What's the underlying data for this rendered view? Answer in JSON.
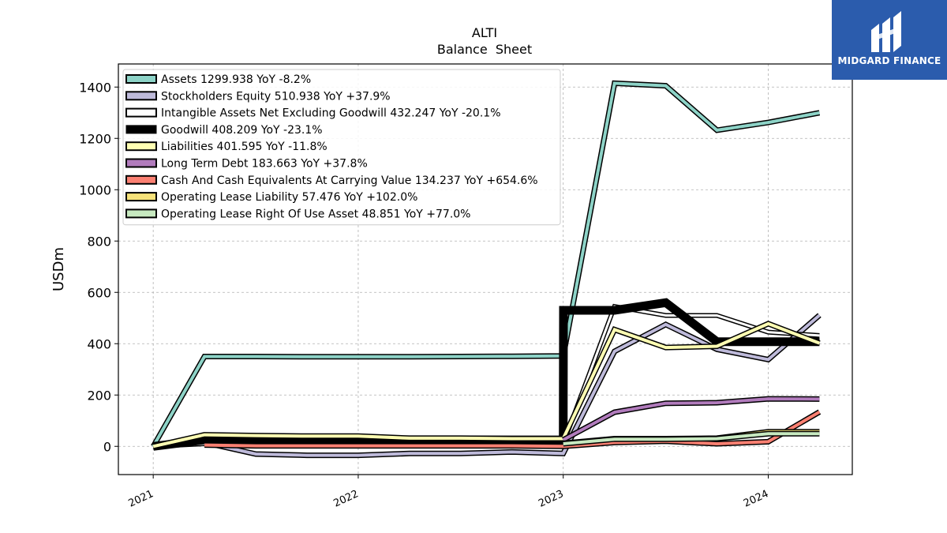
{
  "logo": {
    "text": "MIDGARD FINANCE"
  },
  "chart_data": {
    "type": "line",
    "title": "ALTI",
    "subtitle": "Balance  Sheet",
    "xlabel": "",
    "ylabel": "USDm",
    "ylim": [
      -110,
      1490
    ],
    "xlim": [
      2020.83,
      2024.41
    ],
    "yticks": [
      0,
      200,
      400,
      600,
      800,
      1000,
      1200,
      1400
    ],
    "xticks": [
      {
        "value": 2021,
        "label": "2021"
      },
      {
        "value": 2022,
        "label": "2022"
      },
      {
        "value": 2023,
        "label": "2023"
      },
      {
        "value": 2024,
        "label": "2024"
      }
    ],
    "grid": true,
    "legend_position": "top-left",
    "series": [
      {
        "name": "Assets  1299.938 YoY -8.2%",
        "color": "#8dd3c7",
        "width": 4,
        "x": [
          2021.0,
          2021.25,
          2021.5,
          2021.75,
          2022.0,
          2022.25,
          2022.5,
          2022.75,
          2023.0,
          2023.001,
          2023.25,
          2023.5,
          2023.75,
          2024.0,
          2024.25
        ],
        "y": [
          0,
          350,
          350,
          349,
          349,
          349,
          350,
          351,
          352,
          355,
          1415,
          1405,
          1232,
          1262,
          1300
        ]
      },
      {
        "name": "Stockholders Equity  510.938 YoY +37.9%",
        "color": "#bebada",
        "width": 4,
        "x": [
          2021.0,
          2021.25,
          2021.5,
          2021.75,
          2022.0,
          2022.25,
          2022.5,
          2022.75,
          2023.0,
          2023.25,
          2023.5,
          2023.75,
          2024.0,
          2024.25
        ],
        "y": [
          0,
          15,
          -30,
          -35,
          -35,
          -28,
          -28,
          -22,
          -28,
          370,
          475,
          378,
          338,
          511
        ]
      },
      {
        "name": "Intangible Assets Net Excluding Goodwill  432.247 YoY -20.1%",
        "color": "#ffffff",
        "width": 3,
        "x": [
          2021.0,
          2021.25,
          2021.5,
          2021.75,
          2022.0,
          2022.25,
          2022.5,
          2022.75,
          2023.0,
          2023.25,
          2023.5,
          2023.75,
          2024.0,
          2024.25
        ],
        "y": [
          0,
          10,
          10,
          10,
          10,
          10,
          10,
          10,
          10,
          545,
          510,
          510,
          445,
          432
        ]
      },
      {
        "name": "Goodwill  408.209 YoY -23.1%",
        "color": "#000000",
        "width": 8,
        "x": [
          2021.0,
          2021.25,
          2021.5,
          2021.75,
          2022.0,
          2022.25,
          2022.5,
          2022.75,
          2023.0,
          2023.001,
          2023.25,
          2023.5,
          2023.75,
          2024.0,
          2024.25
        ],
        "y": [
          0,
          25,
          25,
          25,
          25,
          25,
          25,
          25,
          25,
          530,
          530,
          560,
          408,
          408,
          408
        ]
      },
      {
        "name": "Liabilities  401.595 YoY -11.8%",
        "color": "#ffffb3",
        "width": 4,
        "x": [
          2021.0,
          2021.25,
          2021.5,
          2021.75,
          2022.0,
          2022.25,
          2022.5,
          2022.75,
          2023.0,
          2023.25,
          2023.5,
          2023.75,
          2024.0,
          2024.25
        ],
        "y": [
          0,
          45,
          42,
          40,
          40,
          32,
          32,
          30,
          30,
          455,
          385,
          390,
          478,
          402
        ]
      },
      {
        "name": "Long Term Debt  183.663 YoY +37.8%",
        "color": "#b17bbc",
        "width": 4,
        "x": [
          2023.0,
          2023.25,
          2023.5,
          2023.75,
          2024.0,
          2024.25
        ],
        "y": [
          25,
          133,
          168,
          170,
          185,
          184
        ]
      },
      {
        "name": "Cash And Cash Equivalents At Carrying Value  134.237 YoY +654.6%",
        "color": "#fb8072",
        "width": 4,
        "x": [
          2021.25,
          2021.5,
          2021.75,
          2022.0,
          2022.25,
          2022.5,
          2022.75,
          2023.0,
          2023.25,
          2023.5,
          2023.75,
          2024.0,
          2024.25
        ],
        "y": [
          5,
          2,
          2,
          2,
          2,
          2,
          2,
          0,
          15,
          20,
          10,
          18,
          134
        ]
      },
      {
        "name": "Operating Lease Liability  57.476 YoY +102.0%",
        "color": "#f6e27a",
        "width": 4,
        "x": [
          2023.0,
          2023.25,
          2023.5,
          2023.75,
          2024.0,
          2024.25
        ],
        "y": [
          12,
          30,
          30,
          32,
          57,
          57
        ]
      },
      {
        "name": "Operating Lease Right Of Use Asset  48.851 YoY +77.0%",
        "color": "#c7e9c0",
        "width": 4,
        "x": [
          2023.0,
          2023.25,
          2023.5,
          2023.75,
          2024.0,
          2024.25
        ],
        "y": [
          10,
          28,
          28,
          30,
          49,
          49
        ]
      }
    ]
  }
}
